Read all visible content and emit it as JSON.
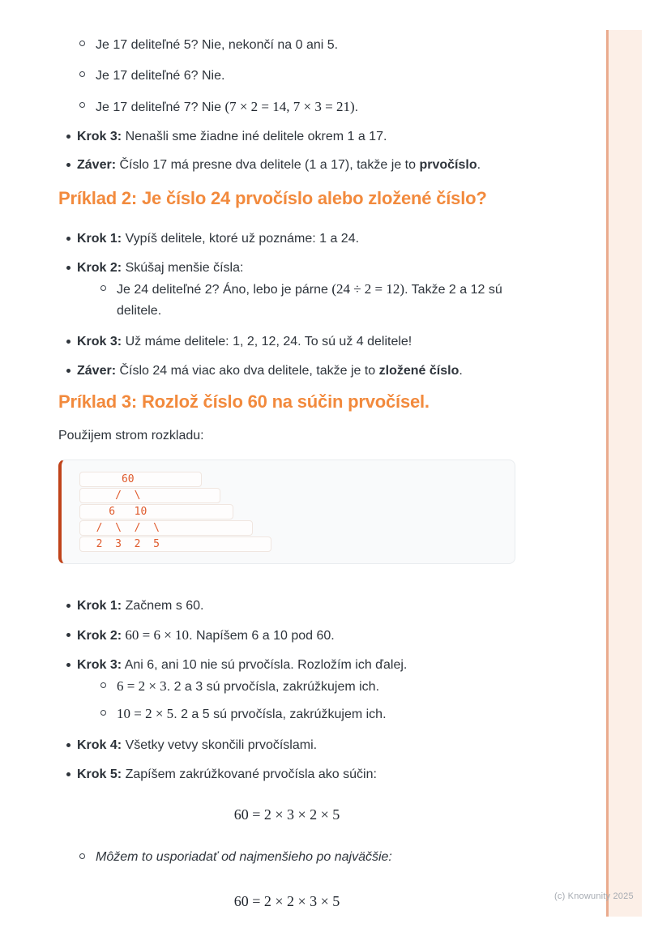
{
  "page": {
    "footer": "(c) Knowunity 2025"
  },
  "section1": {
    "sub_items": [
      {
        "text": "Je 17 deliteľné 5? Nie, nekončí na 0 ani 5."
      },
      {
        "text": "Je 17 deliteľné 6? Nie."
      },
      {
        "pre": "Je 17 deliteľné 7? Nie ",
        "math": "(7 × 2 = 14, 7 × 3 = 21)",
        "post": "."
      }
    ],
    "items": [
      {
        "label": "Krok 3:",
        "text": " Nenašli sme žiadne iné delitele okrem 1 a 17."
      },
      {
        "label": "Záver:",
        "text": " Číslo 17 má presne dva delitele (1 a 17), takže je to ",
        "strong": "prvočíslo",
        "post": "."
      }
    ]
  },
  "section2": {
    "heading": "Príklad 2: Je číslo 24 prvočíslo alebo zložené číslo?",
    "items": [
      {
        "label": "Krok 1:",
        "text": " Vypíš delitele, ktoré už poznáme: 1 a 24."
      },
      {
        "label": "Krok 2:",
        "text": " Skúšaj menšie čísla:"
      },
      {
        "label": "Krok 3:",
        "text": " Už máme delitele: 1, 2, 12, 24. To sú už 4 delitele!"
      },
      {
        "label": "Záver:",
        "text": " Číslo 24 má viac ako dva delitele, takže je to ",
        "strong": "zložené číslo",
        "post": "."
      }
    ],
    "krok2_sub": {
      "pre": "Je 24 deliteľné 2? Áno, lebo je párne ",
      "math": "(24 ÷ 2 = 12)",
      "post": ". Takže 2 a 12 sú delitele."
    }
  },
  "section3": {
    "heading": "Príklad 3: Rozlož číslo 60 na súčin prvočísel.",
    "intro": "Použijem strom rozkladu:",
    "code_block": {
      "lines": [
        "      60          ",
        "     /  \\            ",
        "    6   10             ",
        "  /  \\  /  \\              ",
        "  2  3  2  5                 "
      ]
    },
    "items": [
      {
        "label": "Krok 1:",
        "text": " Začnem s 60."
      },
      {
        "label": "Krok 2:",
        "math": " 60 = 6 × 10",
        "post": ". Napíšem 6 a 10 pod 60."
      },
      {
        "label": "Krok 3:",
        "text": " Ani 6, ani 10 nie sú prvočísla. Rozložím ich ďalej."
      },
      {
        "label": "Krok 4:",
        "text": " Všetky vetvy skončili prvočíslami."
      },
      {
        "label": "Krok 5:",
        "text": " Zapíšem zakrúžkované prvočísla ako súčin:"
      }
    ],
    "krok3_subs": [
      {
        "math": "6 = 2 × 3",
        "post": ". 2 a 3 sú prvočísla, zakrúžkujem ich."
      },
      {
        "math": "10 = 2 × 5",
        "post": ". 2 a 5 sú prvočísla, zakrúžkujem ich."
      }
    ],
    "equation1": "60 = 2 × 3 × 2 × 5",
    "note_italic": "Môžem to usporiadať od najmenšieho po najväčšie:",
    "equation2": "60 = 2 × 2 × 3 × 5"
  }
}
